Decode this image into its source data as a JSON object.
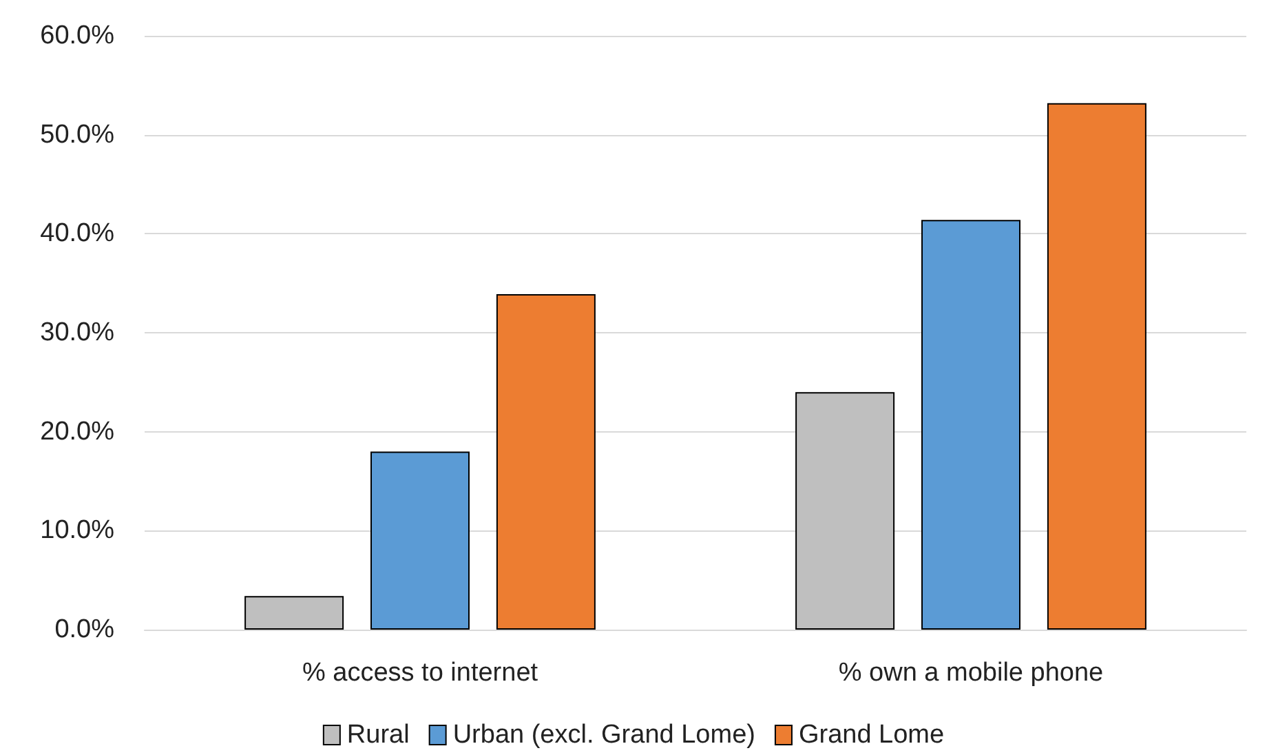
{
  "chart_data": {
    "type": "bar",
    "categories": [
      "% access to internet",
      "% own a mobile phone"
    ],
    "series": [
      {
        "name": "Rural",
        "color": "#bfbfbf",
        "values": [
          3.4,
          24.0
        ]
      },
      {
        "name": "Urban (excl. Grand Lome)",
        "color": "#5b9bd5",
        "values": [
          18.0,
          41.4
        ]
      },
      {
        "name": "Grand Lome",
        "color": "#ed7d31",
        "values": [
          33.9,
          53.2
        ]
      }
    ],
    "ylim": [
      0,
      60
    ],
    "yticks": [
      {
        "value": 0,
        "label": "0.0%"
      },
      {
        "value": 10,
        "label": "10.0%"
      },
      {
        "value": 20,
        "label": "20.0%"
      },
      {
        "value": 30,
        "label": "30.0%"
      },
      {
        "value": 40,
        "label": "40.0%"
      },
      {
        "value": 50,
        "label": "50.0%"
      },
      {
        "value": 60,
        "label": "60.0%"
      }
    ],
    "grid": "y",
    "legend": "bottom"
  }
}
